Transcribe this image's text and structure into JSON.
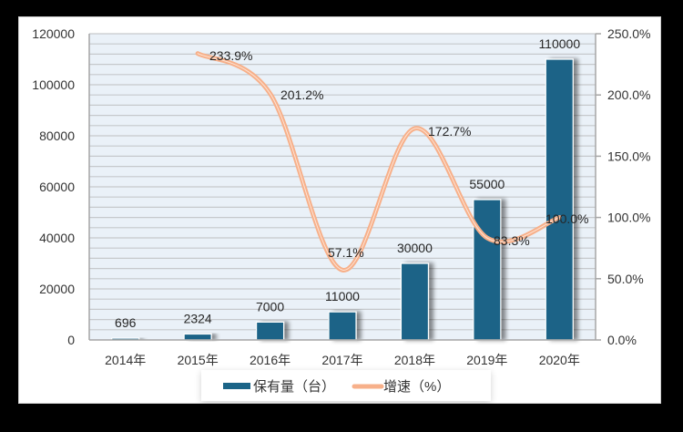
{
  "chart_data": {
    "type": "bar+line",
    "title": "",
    "categories": [
      "2014年",
      "2015年",
      "2016年",
      "2017年",
      "2018年",
      "2019年",
      "2020年"
    ],
    "series": [
      {
        "name": "保有量（台）",
        "type": "bar",
        "axis": "left",
        "color": "#1b6487",
        "values": [
          696,
          2324,
          7000,
          11000,
          30000,
          55000,
          110000
        ],
        "labels": [
          "696",
          "2324",
          "7000",
          "11000",
          "30000",
          "55000",
          "110000"
        ]
      },
      {
        "name": "增速（%）",
        "type": "line",
        "smooth": true,
        "axis": "right",
        "color": "#f7b08a",
        "values": [
          null,
          233.9,
          201.2,
          57.1,
          172.7,
          83.3,
          100.0
        ],
        "labels": [
          "",
          "233.9%",
          "201.2%",
          "57.1%",
          "172.7%",
          "83.3%",
          "100.0%"
        ]
      }
    ],
    "y_left": {
      "ylim": [
        0,
        120000
      ],
      "ticks": [
        "0",
        "20000",
        "40000",
        "60000",
        "80000",
        "100000",
        "120000"
      ]
    },
    "y_right": {
      "ylim": [
        0,
        250
      ],
      "ticks": [
        "0.0%",
        "50.0%",
        "100.0%",
        "150.0%",
        "200.0%",
        "250.0%"
      ]
    },
    "grid": true,
    "legend_position": "bottom",
    "legend": [
      "保有量（台）",
      "增速（%）"
    ],
    "colors": {
      "bar": "#1b6487",
      "line": "#f7b08a",
      "plot_bg": "#eaf1f8",
      "grid": "#c6c9cc"
    }
  },
  "legend": {
    "bar_label": "保有量（台）",
    "line_label": "增速（%）"
  }
}
